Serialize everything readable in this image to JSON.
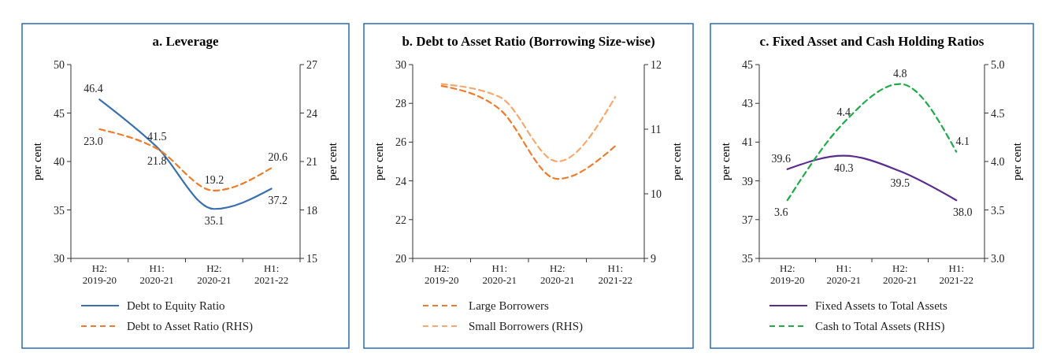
{
  "chart_data": [
    {
      "type": "line",
      "title": "a. Leverage",
      "ylabel": "per cent",
      "y2label": "per cent",
      "categories": [
        "H2:\n2019-20",
        "H1:\n2020-21",
        "H2:\n2020-21",
        "H1:\n2021-22"
      ],
      "ylim": [
        30,
        50
      ],
      "yticks": [
        30,
        35,
        40,
        45,
        50
      ],
      "y2lim": [
        15,
        27
      ],
      "y2ticks": [
        15,
        18,
        21,
        24,
        27
      ],
      "legend": "bottom",
      "series": [
        {
          "name": "Debt to Equity Ratio",
          "color": "#3a6fb0",
          "line_style": "solid",
          "values": [
            46.4,
            41.5,
            35.1,
            37.2
          ],
          "value_labels": [
            "46.4",
            "41.5",
            "35.1",
            "37.2"
          ]
        },
        {
          "name": "Debt to Asset Ratio (RHS)",
          "color": "#f07c2a",
          "line_style": "dashed",
          "axis": "y2",
          "values": [
            23.0,
            21.8,
            19.2,
            20.6
          ],
          "value_labels": [
            "23.0",
            "21.8",
            "19.2",
            "20.6"
          ]
        }
      ]
    },
    {
      "type": "line",
      "title": "b. Debt to Asset Ratio (Borrowing Size-wise)",
      "ylabel": "per cent",
      "y2label": "per cent",
      "categories": [
        "H2:\n2019-20",
        "H1:\n2020-21",
        "H2:\n2020-21",
        "H1:\n2021-22"
      ],
      "ylim": [
        20,
        30
      ],
      "yticks": [
        20,
        22,
        24,
        26,
        28,
        30
      ],
      "y2lim": [
        9,
        12
      ],
      "y2ticks": [
        9,
        10,
        11,
        12
      ],
      "legend": "bottom",
      "series": [
        {
          "name": "Large Borrowers",
          "color": "#f07c2a",
          "line_style": "dashed",
          "values": [
            28.9,
            27.7,
            24.1,
            25.8
          ]
        },
        {
          "name": "Small Borrowers (RHS)",
          "color": "#f7a86e",
          "line_style": "dashed",
          "axis": "y2",
          "values": [
            11.7,
            11.5,
            10.5,
            11.5
          ]
        }
      ]
    },
    {
      "type": "line",
      "title": "c. Fixed Asset and Cash Holding Ratios",
      "ylabel": "per cent",
      "y2label": "per cent",
      "categories": [
        "H2:\n2019-20",
        "H1:\n2020-21",
        "H2:\n2020-21",
        "H1:\n2021-22"
      ],
      "ylim": [
        35,
        45
      ],
      "yticks": [
        35,
        37,
        39,
        41,
        43,
        45
      ],
      "y2lim": [
        3,
        5
      ],
      "y2ticks": [
        {
          "value": 3,
          "label": "3.0"
        },
        {
          "value": 3.5,
          "label": "3.5"
        },
        {
          "value": 4,
          "label": "4.0"
        },
        {
          "value": 4.5,
          "label": "4.5"
        },
        {
          "value": 5,
          "label": "5.0"
        }
      ],
      "legend": "bottom",
      "series": [
        {
          "name": "Fixed Assets to Total Assets",
          "color": "#5b2d8e",
          "line_style": "solid",
          "values": [
            39.6,
            40.3,
            39.5,
            38.0
          ],
          "value_labels": [
            "39.6",
            "40.3",
            "39.5",
            "38.0"
          ]
        },
        {
          "name": "Cash to Total Assets (RHS)",
          "color": "#1fab4a",
          "line_style": "dashed",
          "axis": "y2",
          "values": [
            3.6,
            4.4,
            4.8,
            4.1
          ],
          "value_labels": [
            "3.6",
            "4.4",
            "4.8",
            "4.1"
          ]
        }
      ]
    }
  ]
}
